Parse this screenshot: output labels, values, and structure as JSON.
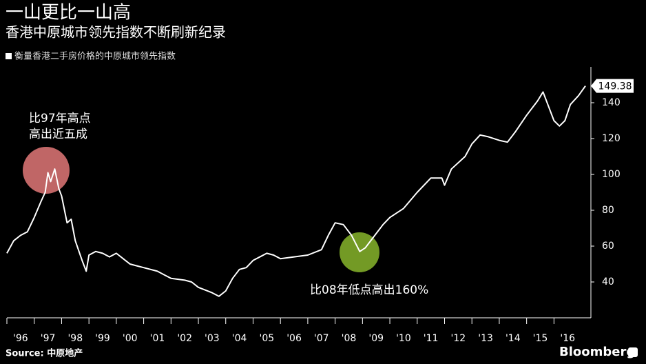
{
  "chart_data": {
    "type": "line",
    "title": "一山更比一山高",
    "subtitle": "香港中原城市领先指数不断刷新纪录",
    "x": [
      1996.0,
      1996.25,
      1996.5,
      1996.75,
      1997.0,
      1997.25,
      1997.4,
      1997.5,
      1997.6,
      1997.75,
      1997.9,
      1998.0,
      1998.2,
      1998.35,
      1998.5,
      1998.75,
      1998.9,
      1999.0,
      1999.25,
      1999.5,
      1999.75,
      2000.0,
      2000.25,
      2000.5,
      2000.75,
      2001.0,
      2001.5,
      2001.75,
      2002.0,
      2002.5,
      2002.75,
      2003.0,
      2003.5,
      2003.75,
      2004.0,
      2004.25,
      2004.5,
      2004.75,
      2005.0,
      2005.5,
      2005.75,
      2006.0,
      2006.5,
      2007.0,
      2007.5,
      2007.75,
      2008.0,
      2008.3,
      2008.6,
      2008.9,
      2009.1,
      2009.4,
      2009.75,
      2010.0,
      2010.5,
      2011.0,
      2011.5,
      2011.9,
      2012.0,
      2012.25,
      2012.75,
      2013.0,
      2013.3,
      2013.6,
      2014.0,
      2014.3,
      2014.6,
      2015.0,
      2015.4,
      2015.6,
      2015.8,
      2016.0,
      2016.2,
      2016.4,
      2016.6,
      2016.9,
      2017.15
    ],
    "series": [
      {
        "name": "衡量香港二手房价格的中原城市领先指数",
        "color": "#ffffff",
        "values": [
          56,
          63,
          66,
          68,
          76,
          85,
          90,
          101,
          96,
          103,
          92,
          88,
          73,
          75,
          63,
          52,
          46,
          55,
          57,
          56,
          54,
          56,
          53,
          50,
          49,
          48,
          46,
          44,
          42,
          41,
          40,
          37,
          34,
          32,
          35,
          42,
          47,
          48,
          52,
          56,
          55,
          53,
          54,
          55,
          58,
          66,
          73,
          72,
          66,
          57,
          59,
          65,
          72,
          76,
          81,
          90,
          98,
          98,
          94,
          103,
          110,
          117,
          122,
          121,
          119,
          118,
          124,
          133,
          141,
          146,
          138,
          130,
          127,
          130,
          139,
          144,
          149.38
        ]
      }
    ],
    "xlim": [
      1996,
      2017.35
    ],
    "xticks": [
      {
        "value": 1996,
        "label": "'96"
      },
      {
        "value": 1997,
        "label": "'97"
      },
      {
        "value": 1998,
        "label": "'98"
      },
      {
        "value": 1999,
        "label": "'99"
      },
      {
        "value": 2000,
        "label": "'00"
      },
      {
        "value": 2001,
        "label": "'01"
      },
      {
        "value": 2002,
        "label": "'02"
      },
      {
        "value": 2003,
        "label": "'03"
      },
      {
        "value": 2004,
        "label": "'04"
      },
      {
        "value": 2005,
        "label": "'05"
      },
      {
        "value": 2006,
        "label": "'06"
      },
      {
        "value": 2007,
        "label": "'07"
      },
      {
        "value": 2008,
        "label": "'08"
      },
      {
        "value": 2009,
        "label": "'09"
      },
      {
        "value": 2010,
        "label": "'10"
      },
      {
        "value": 2011,
        "label": "'11"
      },
      {
        "value": 2012,
        "label": "'12"
      },
      {
        "value": 2013,
        "label": "'13"
      },
      {
        "value": 2014,
        "label": "'14"
      },
      {
        "value": 2015,
        "label": "'15"
      },
      {
        "value": 2016,
        "label": "'16"
      }
    ],
    "ylim": [
      20,
      160
    ],
    "yticks": [
      40,
      60,
      80,
      100,
      120,
      140
    ],
    "annotations": [
      "比97年高点",
      "高出近五成",
      "比08年低点高出160%"
    ],
    "source": "Source: 中原地产",
    "brand": "Bloomberg"
  }
}
